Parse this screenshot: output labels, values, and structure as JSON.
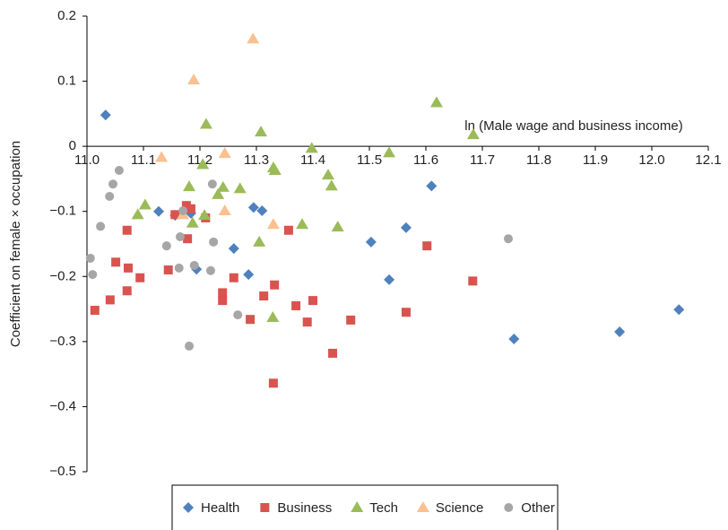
{
  "chart_data": {
    "type": "scatter",
    "x_label": "ln (Male wage and business income)",
    "y_label": "Coefficient on female × occupation",
    "xlim": [
      11.0,
      12.1
    ],
    "ylim": [
      -0.5,
      0.2
    ],
    "xticks": [
      {
        "value": 11.0,
        "label": "11.0"
      },
      11.1,
      11.2,
      11.3,
      11.4,
      11.5,
      11.6,
      11.7,
      11.8,
      11.9,
      {
        "value": 12.0,
        "label": "12.0"
      },
      12.1
    ],
    "yticks": [
      0.2,
      0.1,
      0,
      {
        "value": -0.1,
        "label": "−0.1"
      },
      {
        "value": -0.2,
        "label": "−0.2"
      },
      {
        "value": -0.3,
        "label": "−0.3"
      },
      {
        "value": -0.4,
        "label": "−0.4"
      },
      {
        "value": -0.5,
        "label": "−0.5"
      }
    ],
    "grid": false,
    "legend": "bottom",
    "series": [
      {
        "name": "Health",
        "color": "#4f81bd",
        "marker": "diamond",
        "x": [
          11.033,
          11.127,
          11.156,
          11.184,
          11.194,
          11.26,
          11.286,
          11.295,
          11.31,
          11.503,
          11.535,
          11.565,
          11.61,
          11.756,
          11.943,
          12.048
        ],
        "values": [
          0.048,
          -0.1,
          -0.106,
          -0.103,
          -0.189,
          -0.157,
          -0.197,
          -0.094,
          -0.099,
          -0.147,
          -0.205,
          -0.125,
          -0.061,
          -0.296,
          -0.285,
          -0.251
        ]
      },
      {
        "name": "Business",
        "color": "#d9534f",
        "marker": "square",
        "x": [
          11.014,
          11.041,
          11.051,
          11.071,
          11.073,
          11.071,
          11.094,
          11.144,
          11.156,
          11.176,
          11.178,
          11.184,
          11.21,
          11.24,
          11.24,
          11.26,
          11.289,
          11.313,
          11.332,
          11.33,
          11.357,
          11.37,
          11.39,
          11.4,
          11.435,
          11.467,
          11.565,
          11.602,
          11.683
        ],
        "values": [
          -0.252,
          -0.236,
          -0.178,
          -0.129,
          -0.187,
          -0.222,
          -0.202,
          -0.19,
          -0.105,
          -0.091,
          -0.142,
          -0.096,
          -0.11,
          -0.225,
          -0.237,
          -0.202,
          -0.266,
          -0.23,
          -0.213,
          -0.364,
          -0.129,
          -0.245,
          -0.27,
          -0.237,
          -0.318,
          -0.267,
          -0.255,
          -0.153,
          -0.207
        ]
      },
      {
        "name": "Tech",
        "color": "#9bbb59",
        "marker": "triangle",
        "x": [
          11.09,
          11.103,
          11.181,
          11.187,
          11.205,
          11.211,
          11.208,
          11.232,
          11.241,
          11.271,
          11.308,
          11.305,
          11.33,
          11.333,
          11.329,
          11.381,
          11.398,
          11.427,
          11.433,
          11.444,
          11.535,
          11.619,
          11.684
        ],
        "values": [
          -0.105,
          -0.09,
          -0.062,
          -0.118,
          -0.028,
          0.034,
          -0.106,
          -0.074,
          -0.063,
          -0.065,
          0.022,
          -0.147,
          -0.033,
          -0.037,
          -0.263,
          -0.12,
          -0.003,
          -0.044,
          -0.061,
          -0.124,
          -0.01,
          0.067,
          0.018
        ]
      },
      {
        "name": "Science",
        "color": "#fac090",
        "marker": "triangle",
        "x": [
          11.132,
          11.17,
          11.189,
          11.244,
          11.244,
          11.294,
          11.33
        ],
        "values": [
          -0.017,
          -0.105,
          0.102,
          -0.011,
          -0.099,
          0.165,
          -0.12
        ]
      },
      {
        "name": "Other",
        "color": "#a6a6a6",
        "marker": "circle",
        "x": [
          11.006,
          11.01,
          11.024,
          11.04,
          11.046,
          11.057,
          11.141,
          11.163,
          11.165,
          11.17,
          11.181,
          11.19,
          11.219,
          11.222,
          11.224,
          11.267,
          11.746
        ],
        "values": [
          -0.172,
          -0.197,
          -0.123,
          -0.077,
          -0.058,
          -0.037,
          -0.153,
          -0.187,
          -0.139,
          -0.099,
          -0.307,
          -0.183,
          -0.191,
          -0.058,
          -0.147,
          -0.259,
          -0.142
        ]
      }
    ]
  }
}
